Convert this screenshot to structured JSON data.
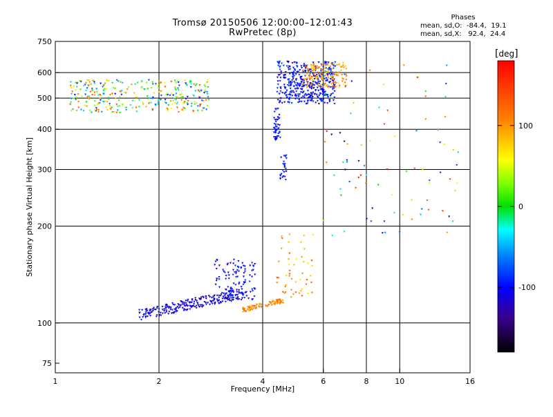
{
  "header": {
    "title": "Tromsø 20150506 12:00:00–12:01:43",
    "subtitle": "RwPretec (8p)"
  },
  "phases_legend": {
    "title": "Phases",
    "o_stats": "mean, sd,O:  -84.4,  19.1",
    "x_stats": "mean, sd,X:   92.4,  24.4"
  },
  "colorbar": {
    "unit": "deg",
    "ticks": [
      "100",
      "0",
      "-100"
    ],
    "tick_values": [
      100,
      0,
      -100
    ],
    "range": [
      -180,
      180
    ]
  },
  "chart_data": {
    "type": "scatter",
    "xlabel": "Frequency [MHz]",
    "ylabel": "Stationary phase Virtual Height [km]",
    "xscale": "log",
    "yscale": "log",
    "xlim": [
      1,
      16
    ],
    "ylim": [
      70,
      750
    ],
    "x_ticks": [
      1,
      2,
      4,
      6,
      8,
      10,
      16
    ],
    "x_tick_labels": [
      "1",
      "2",
      "4",
      "6",
      "8",
      "10",
      "16"
    ],
    "y_ticks": [
      75,
      100,
      200,
      300,
      400,
      500,
      600,
      750
    ],
    "y_tick_labels": [
      "75",
      "100",
      "200",
      "300",
      "400",
      "500",
      "600",
      "750"
    ],
    "grid": true,
    "color_by": "phase (deg)",
    "point_groups": [
      {
        "f_range": [
          1.75,
          3.5
        ],
        "h_range": [
          102,
          135
        ],
        "phase_range": [
          -130,
          -90
        ],
        "n": 240,
        "note": "E-layer O trace"
      },
      {
        "f_range": [
          2.9,
          3.8
        ],
        "h_range": [
          118,
          158
        ],
        "phase_range": [
          -120,
          -80
        ],
        "n": 110
      },
      {
        "f_range": [
          3.5,
          4.6
        ],
        "h_range": [
          108,
          122
        ],
        "phase_range": [
          80,
          130
        ],
        "n": 90,
        "note": "E-layer X trace"
      },
      {
        "f_range": [
          4.4,
          5.6
        ],
        "h_range": [
          120,
          190
        ],
        "phase_range": [
          60,
          140
        ],
        "n": 50
      },
      {
        "f_range": [
          1.1,
          2.8
        ],
        "h_range": [
          450,
          570
        ],
        "phase_range": [
          -100,
          140
        ],
        "n": 320,
        "note": "F-layer diffuse"
      },
      {
        "f_range": [
          4.3,
          4.5
        ],
        "h_range": [
          370,
          470
        ],
        "phase_range": [
          -110,
          -80
        ],
        "n": 45
      },
      {
        "f_range": [
          4.5,
          4.7
        ],
        "h_range": [
          275,
          335
        ],
        "phase_range": [
          -110,
          -80
        ],
        "n": 25
      },
      {
        "f_range": [
          4.4,
          6.5
        ],
        "h_range": [
          480,
          650
        ],
        "phase_range": [
          -120,
          -75
        ],
        "n": 420,
        "note": "F-layer O cusp"
      },
      {
        "f_range": [
          5.2,
          7.0
        ],
        "h_range": [
          540,
          640
        ],
        "phase_range": [
          60,
          140
        ],
        "n": 150,
        "note": "F-layer X trace"
      },
      {
        "f_range": [
          6.0,
          15.0
        ],
        "h_range": [
          180,
          650
        ],
        "phase_range": [
          -150,
          170
        ],
        "n": 90,
        "note": "scattered echoes"
      }
    ]
  }
}
